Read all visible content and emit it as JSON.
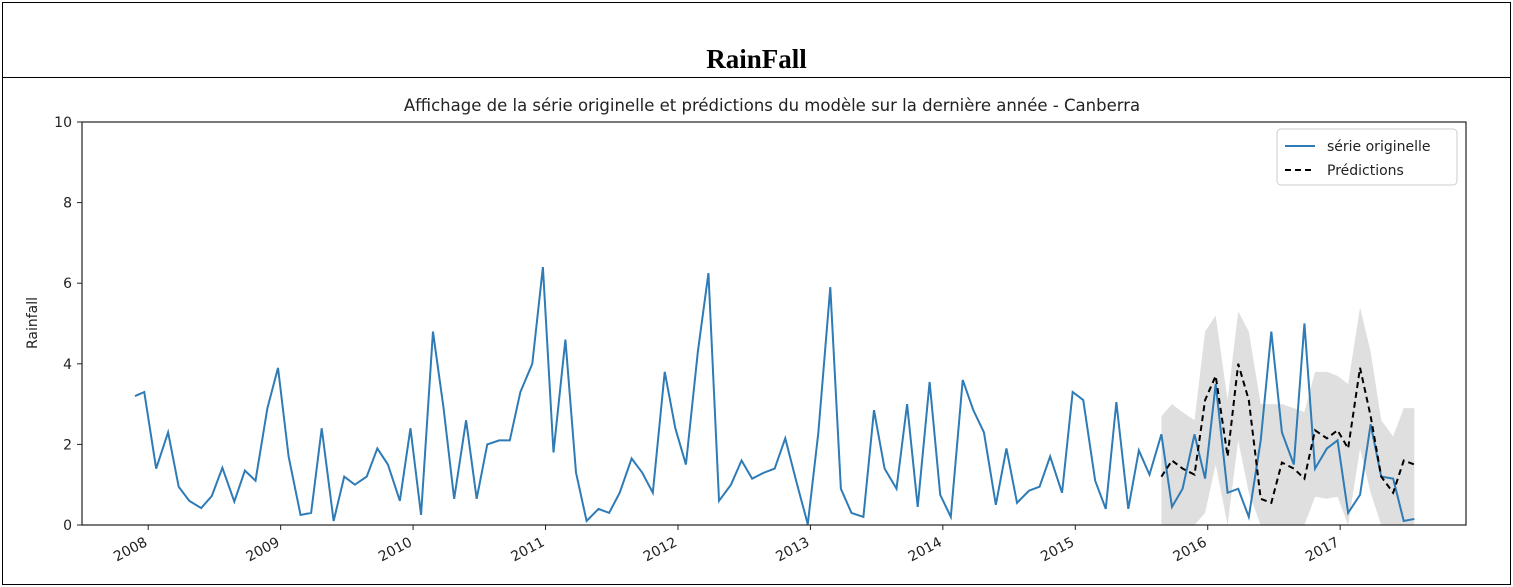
{
  "header": {
    "title": "RainFall"
  },
  "chart_data": {
    "type": "line",
    "title": "Affichage de la série originelle et prédictions du modèle sur la dernière année - Canberra",
    "xlabel": "",
    "ylabel": "Rainfall",
    "ylim": [
      0,
      10
    ],
    "xlim": [
      2007.5,
      2017.95
    ],
    "yticks": [
      "0",
      "2",
      "4",
      "6",
      "8",
      "10"
    ],
    "xticks": [
      {
        "label": "2008",
        "x": 2008.0
      },
      {
        "label": "2009",
        "x": 2009.0
      },
      {
        "label": "2010",
        "x": 2010.0
      },
      {
        "label": "2011",
        "x": 2011.0
      },
      {
        "label": "2012",
        "x": 2012.0
      },
      {
        "label": "2013",
        "x": 2013.0
      },
      {
        "label": "2014",
        "x": 2014.0
      },
      {
        "label": "2015",
        "x": 2015.0
      },
      {
        "label": "2016",
        "x": 2016.0
      },
      {
        "label": "2017",
        "x": 2017.0
      }
    ],
    "legend_position": "top-right",
    "grid": false,
    "colors": {
      "original": "#2e7bb6",
      "prediction": "#000000",
      "band": "#d4d4d4"
    },
    "series": [
      {
        "name": "série originelle",
        "style": "solid",
        "x": [
          2007.9,
          2007.97,
          2008.06,
          2008.15,
          2008.23,
          2008.31,
          2008.4,
          2008.48,
          2008.56,
          2008.65,
          2008.73,
          2008.81,
          2008.9,
          2008.98,
          2009.06,
          2009.15,
          2009.23,
          2009.31,
          2009.4,
          2009.48,
          2009.56,
          2009.65,
          2009.73,
          2009.81,
          2009.9,
          2009.98,
          2010.06,
          2010.15,
          2010.23,
          2010.31,
          2010.4,
          2010.48,
          2010.56,
          2010.65,
          2010.73,
          2010.81,
          2010.9,
          2010.98,
          2011.06,
          2011.15,
          2011.23,
          2011.31,
          2011.4,
          2011.48,
          2011.56,
          2011.65,
          2011.73,
          2011.81,
          2011.9,
          2011.98,
          2012.06,
          2012.15,
          2012.23,
          2012.31,
          2012.4,
          2012.48,
          2012.56,
          2012.65,
          2012.73,
          2012.81,
          2012.9,
          2012.98,
          2013.06,
          2013.15,
          2013.23,
          2013.31,
          2013.4,
          2013.48,
          2013.56,
          2013.65,
          2013.73,
          2013.81,
          2013.9,
          2013.98,
          2014.06,
          2014.15,
          2014.23,
          2014.31,
          2014.4,
          2014.48,
          2014.56,
          2014.65,
          2014.73,
          2014.81,
          2014.9,
          2014.98,
          2015.06,
          2015.15,
          2015.23,
          2015.31,
          2015.4,
          2015.48,
          2015.56,
          2015.65,
          2015.73,
          2015.81,
          2015.9,
          2015.98,
          2016.06,
          2016.15,
          2016.23,
          2016.31,
          2016.4,
          2016.48,
          2016.56,
          2016.65,
          2016.73,
          2016.81,
          2016.9,
          2016.98,
          2017.06,
          2017.15,
          2017.23,
          2017.31,
          2017.4,
          2017.48,
          2017.56
        ],
        "y": [
          3.2,
          3.3,
          1.4,
          2.3,
          0.95,
          0.6,
          0.42,
          0.72,
          1.42,
          0.58,
          1.35,
          1.1,
          2.9,
          3.9,
          1.7,
          0.25,
          0.3,
          2.4,
          0.1,
          1.2,
          1.0,
          1.2,
          1.9,
          1.5,
          0.6,
          2.4,
          0.25,
          4.8,
          2.9,
          0.65,
          2.6,
          0.65,
          2.0,
          2.1,
          2.1,
          3.3,
          4.0,
          6.4,
          1.8,
          4.6,
          1.3,
          0.1,
          0.4,
          0.3,
          0.8,
          1.65,
          1.3,
          0.8,
          3.8,
          2.4,
          1.5,
          4.3,
          6.25,
          0.6,
          1.0,
          1.6,
          1.15,
          1.3,
          1.4,
          2.15,
          1.0,
          0.02,
          2.3,
          5.9,
          0.9,
          0.3,
          0.2,
          2.85,
          1.4,
          0.9,
          3.0,
          0.45,
          3.55,
          0.75,
          0.2,
          3.6,
          2.85,
          2.3,
          0.5,
          1.9,
          0.55,
          0.85,
          0.95,
          1.7,
          0.8,
          3.3,
          3.1,
          1.1,
          0.4,
          3.05,
          0.4,
          1.85,
          1.25,
          2.25,
          0.45,
          0.9,
          2.25,
          1.15,
          3.5,
          0.8,
          0.9,
          0.2,
          2.1,
          4.8,
          2.3,
          1.5,
          5.0,
          1.4,
          1.9,
          2.1,
          0.3,
          0.75,
          2.5,
          1.2,
          1.15,
          0.1,
          0.15
        ]
      },
      {
        "name": "Prédictions",
        "style": "dashed",
        "x": [
          2015.65,
          2015.73,
          2015.81,
          2015.9,
          2015.98,
          2016.06,
          2016.15,
          2016.23,
          2016.31,
          2016.4,
          2016.48,
          2016.56,
          2016.65,
          2016.73,
          2016.81,
          2016.9,
          2016.98,
          2017.06,
          2017.15,
          2017.23,
          2017.31,
          2017.4,
          2017.48,
          2017.56
        ],
        "y": [
          1.2,
          1.6,
          1.4,
          1.25,
          3.1,
          3.7,
          1.7,
          4.0,
          3.1,
          0.65,
          0.55,
          1.55,
          1.4,
          1.15,
          2.35,
          2.15,
          2.35,
          1.9,
          3.9,
          2.7,
          1.2,
          0.8,
          1.6,
          1.5
        ],
        "lower": [
          0.0,
          0.0,
          0.0,
          0.0,
          0.3,
          1.5,
          0.0,
          2.1,
          0.8,
          0.0,
          0.0,
          0.0,
          0.0,
          0.0,
          0.7,
          0.65,
          0.7,
          0.0,
          1.9,
          0.8,
          0.0,
          0.0,
          0.0,
          0.0
        ],
        "upper": [
          2.7,
          3.0,
          2.8,
          2.6,
          4.8,
          5.2,
          3.1,
          5.3,
          4.8,
          3.0,
          3.0,
          3.0,
          2.9,
          2.8,
          3.8,
          3.8,
          3.7,
          3.5,
          5.4,
          4.3,
          2.6,
          2.2,
          2.9,
          2.9
        ]
      }
    ]
  }
}
